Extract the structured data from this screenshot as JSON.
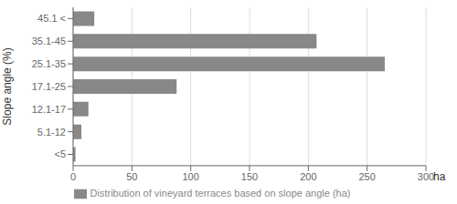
{
  "chart_data": {
    "type": "bar",
    "orientation": "horizontal",
    "categories": [
      "<5",
      "5.1-12",
      "12.1-17",
      "17.1-25",
      "25.1-35",
      "35.1-45",
      "45.1 <"
    ],
    "series": [
      {
        "name": "Distribution of vineyard terraces based on slope angle (ha)",
        "color": "#888888",
        "values": [
          2,
          7,
          13,
          88,
          265,
          207,
          18
        ]
      }
    ],
    "xlabel": "ha",
    "ylabel": "Slope angle (%)",
    "xlim": [
      0,
      300
    ],
    "xticks": [
      0,
      50,
      100,
      150,
      200,
      250,
      300
    ],
    "grid": true,
    "legend": "bottom"
  }
}
